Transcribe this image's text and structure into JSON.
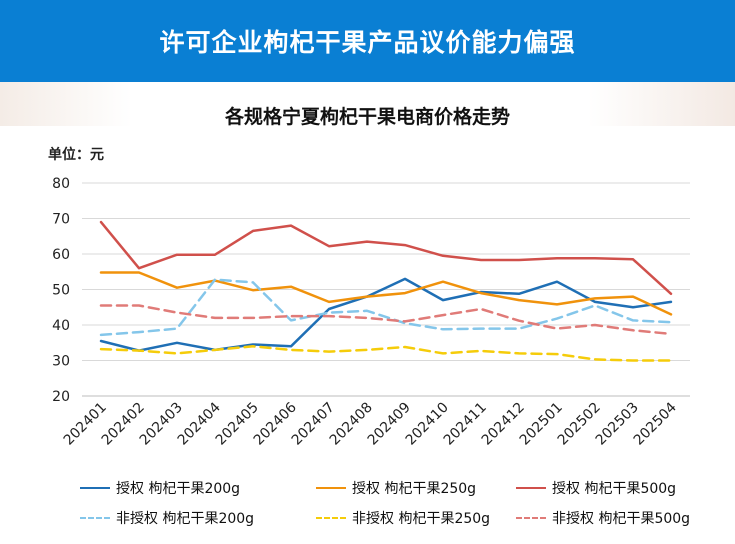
{
  "banner": {
    "title": "许可企业枸杞干果产品议价能力偏强"
  },
  "chart_data": {
    "type": "line",
    "title": "各规格宁夏枸杞干果电商价格走势",
    "unit_label": "单位：元",
    "ylim": [
      20,
      80
    ],
    "yticks": [
      20,
      30,
      40,
      50,
      60,
      70,
      80
    ],
    "grid": true,
    "legend_position": "bottom",
    "categories": [
      "202401",
      "202402",
      "202403",
      "202404",
      "202405",
      "202406",
      "202407",
      "202408",
      "202409",
      "202410",
      "202411",
      "202412",
      "202501",
      "202502",
      "202503",
      "202504"
    ],
    "series": [
      {
        "name": "授权 枸杞干果200g",
        "color": "#1f6fb5",
        "dashed": false,
        "values": [
          35.5,
          32.8,
          35,
          33,
          34.5,
          34,
          44.5,
          48,
          53,
          47,
          49.3,
          48.8,
          52.2,
          46.5,
          45,
          46.5
        ]
      },
      {
        "name": "授权 枸杞干果250g",
        "color": "#f0920c",
        "dashed": false,
        "values": [
          54.8,
          54.8,
          50.5,
          52.5,
          49.8,
          50.8,
          46.5,
          48,
          49,
          52.2,
          49,
          47,
          45.8,
          47.5,
          48,
          43
        ]
      },
      {
        "name": "授权 枸杞干果500g",
        "color": "#d0504b",
        "dashed": false,
        "values": [
          69,
          56,
          59.8,
          59.8,
          66.5,
          68,
          62.2,
          63.5,
          62.5,
          59.5,
          58.3,
          58.3,
          58.8,
          58.8,
          58.5,
          48.8
        ]
      },
      {
        "name": "非授权 枸杞干果200g",
        "color": "#84c6ea",
        "dashed": true,
        "values": [
          37.2,
          38,
          39,
          52.8,
          52,
          41.3,
          43.5,
          44,
          40.5,
          38.8,
          39,
          39,
          41.8,
          45.5,
          41.3,
          40.8
        ]
      },
      {
        "name": "非授权 枸杞干果250g",
        "color": "#f5cc0a",
        "dashed": true,
        "values": [
          33.2,
          32.8,
          32,
          33,
          34,
          33,
          32.5,
          33,
          33.8,
          32,
          32.7,
          32,
          31.8,
          30.3,
          30,
          30
        ]
      },
      {
        "name": "非授权 枸杞干果500g",
        "color": "#e07b78",
        "dashed": true,
        "values": [
          45.5,
          45.5,
          43.5,
          42,
          42,
          42.5,
          42.5,
          42,
          41,
          42.8,
          44.5,
          41.2,
          39,
          40,
          38.5,
          37.5
        ]
      }
    ]
  }
}
